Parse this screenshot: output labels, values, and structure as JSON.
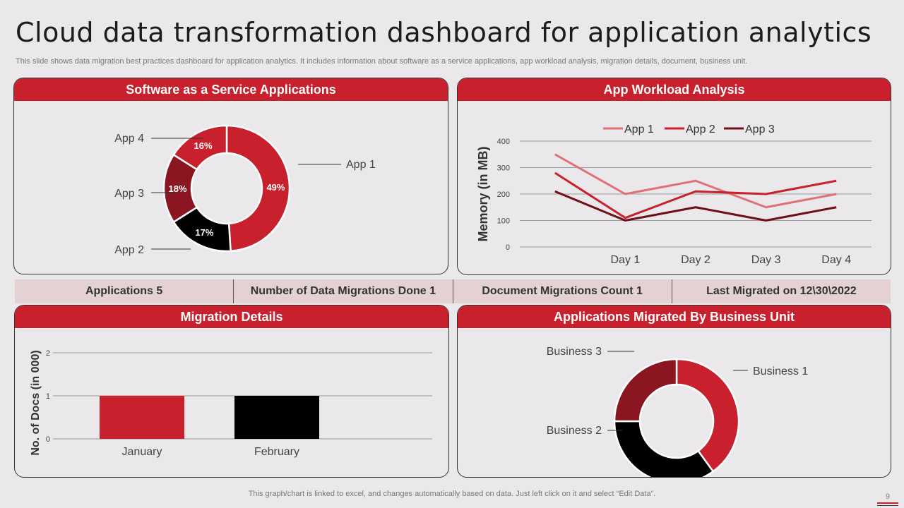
{
  "title": "Cloud data transformation  dashboard for application analytics",
  "subtitle": "This slide shows data migration best practices dashboard for application analytics. It includes information about software as a service applications, app workload analysis, migration details, document, business unit.",
  "footer": "This graph/chart is linked to excel,  and changes automatically based on data. Just left click on it and select “Edit Data”.",
  "page_number": "9",
  "colors": {
    "accent": "#c8202c",
    "dark_red": "#8b1520",
    "pink": "#e07075",
    "black": "#000000",
    "stat_bg": "#e3d1d4"
  },
  "panels": {
    "saas": {
      "title": "Software as a Service Applications"
    },
    "workload": {
      "title": "App Workload Analysis"
    },
    "migration": {
      "title": "Migration Details"
    },
    "business": {
      "title": "Applications Migrated By Business Unit"
    }
  },
  "stats": [
    "Applications 5",
    "Number of Data Migrations Done 1",
    "Document Migrations Count 1",
    "Last Migrated on 12\\30\\2022"
  ],
  "chart_data": [
    {
      "id": "saas",
      "type": "pie",
      "donut": true,
      "slices": [
        {
          "label": "App 1",
          "value": 49,
          "data_label": "49%",
          "color": "#c8202c"
        },
        {
          "label": "App 2",
          "value": 17,
          "data_label": "17%",
          "color": "#000000"
        },
        {
          "label": "App 3",
          "value": 18,
          "data_label": "18%",
          "color": "#8b1520"
        },
        {
          "label": "App 4",
          "value": 16,
          "data_label": "16%",
          "color": "#c8202c"
        }
      ]
    },
    {
      "id": "workload",
      "type": "line",
      "ylabel": "Memory (in MB)",
      "ylim": [
        0,
        400
      ],
      "yticks": [
        0,
        100,
        200,
        300,
        400
      ],
      "categories": [
        "",
        "Day 1",
        "Day 2",
        "Day 3",
        "Day 4"
      ],
      "legend": "top",
      "grid": true,
      "series": [
        {
          "name": "App 1",
          "color": "#e07075",
          "values": [
            350,
            200,
            250,
            150,
            200
          ]
        },
        {
          "name": "App 2",
          "color": "#c8202c",
          "values": [
            280,
            110,
            210,
            200,
            250
          ]
        },
        {
          "name": "App 3",
          "color": "#6e0f18",
          "values": [
            210,
            100,
            150,
            100,
            150
          ]
        }
      ]
    },
    {
      "id": "migration",
      "type": "bar",
      "ylabel": "No. of Docs (in 000)",
      "ylim": [
        0,
        2
      ],
      "yticks": [
        0,
        1,
        2
      ],
      "categories": [
        "January",
        "February"
      ],
      "values": [
        1,
        1
      ],
      "colors": [
        "#c8202c",
        "#000000"
      ],
      "grid": true
    },
    {
      "id": "business",
      "type": "pie",
      "donut": true,
      "slices": [
        {
          "label": "Business 1",
          "value": 40,
          "color": "#c8202c"
        },
        {
          "label": "Business 2",
          "value": 35,
          "color": "#000000"
        },
        {
          "label": "Business 3",
          "value": 25,
          "color": "#8b1520"
        }
      ]
    }
  ]
}
